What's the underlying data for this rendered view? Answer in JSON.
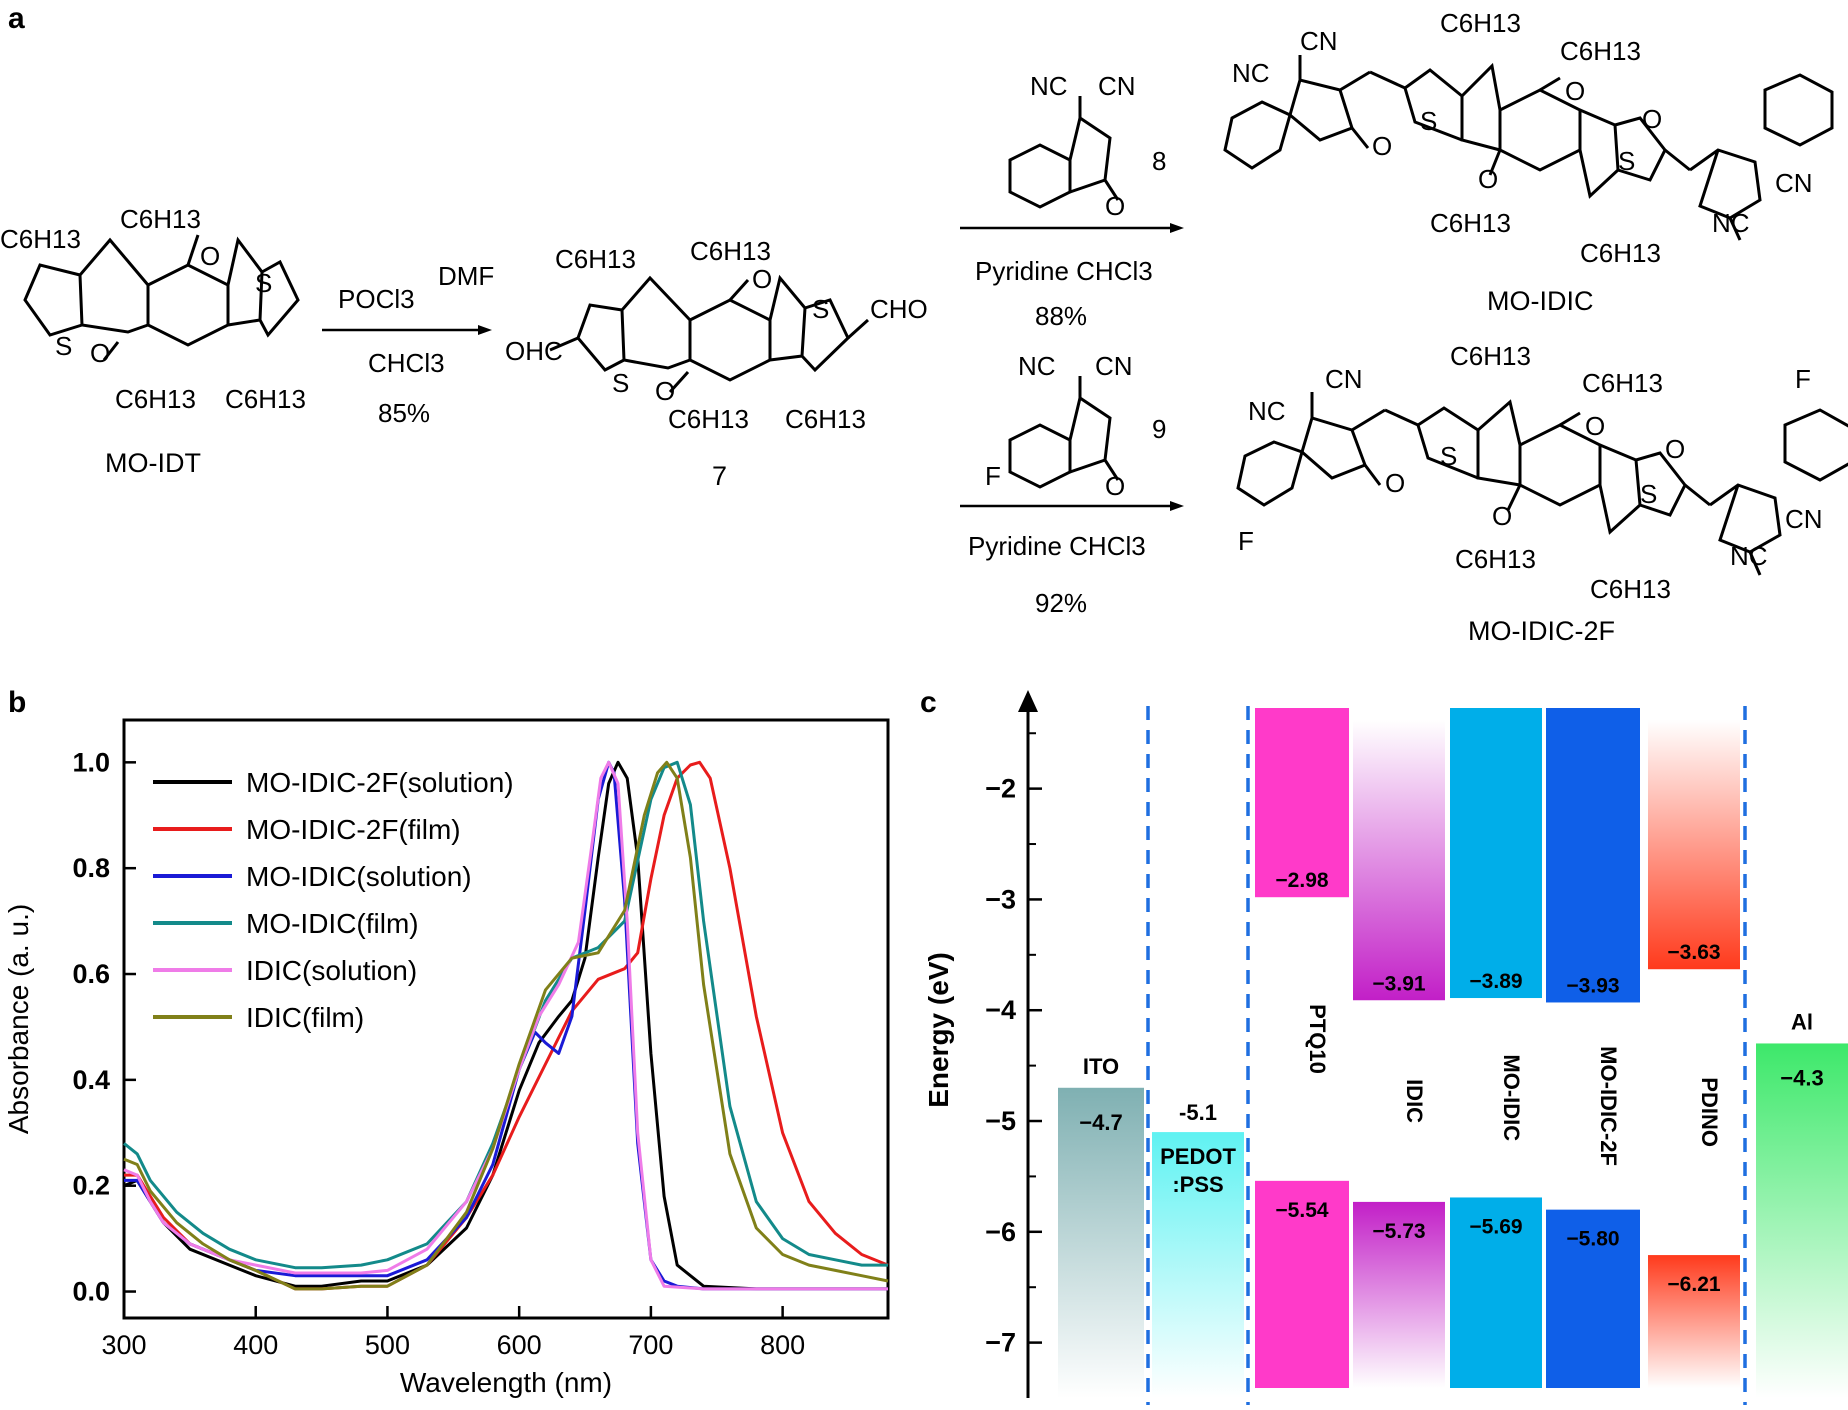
{
  "panel_a": {
    "label": "a",
    "start": {
      "name": "MO-IDT"
    },
    "step1": {
      "reagent_top_left": "POCl3",
      "reagent_top_right": "DMF",
      "solvent": "CHCl3",
      "yield": "85%"
    },
    "intermediate": {
      "number": "7"
    },
    "step2": {
      "reagent_number": "8",
      "conditions": "Pyridine CHCl3",
      "yield": "88%",
      "product": "MO-IDIC"
    },
    "step3": {
      "reagent_number": "9",
      "conditions": "Pyridine  CHCl3",
      "yield": "92%",
      "product": "MO-IDIC-2F"
    },
    "atom_labels": {
      "c6h13": "C6H13",
      "nc": "NC",
      "cn": "CN",
      "ohc": "OHC",
      "cho": "CHO",
      "s": "S",
      "o": "O",
      "f": "F"
    }
  },
  "panel_b": {
    "label": "b",
    "chart_data": {
      "type": "line",
      "xlabel": "Wavelength (nm)",
      "ylabel": "Absorbance (a. u.)",
      "xlim": [
        300,
        880
      ],
      "ylim": [
        -0.05,
        1.08
      ],
      "xticks": [
        "300",
        "400",
        "500",
        "600",
        "700",
        "800"
      ],
      "yticks": [
        "0.0",
        "0.2",
        "0.4",
        "0.6",
        "0.8",
        "1.0"
      ],
      "legend_position": "top-left",
      "series": [
        {
          "name": "MO-IDIC-2F(solution)",
          "color": "#000000",
          "x": [
            300,
            310,
            320,
            330,
            350,
            380,
            400,
            430,
            450,
            480,
            500,
            530,
            560,
            580,
            600,
            615,
            630,
            640,
            650,
            660,
            668,
            675,
            682,
            690,
            700,
            710,
            720,
            740,
            780,
            880
          ],
          "y": [
            0.2,
            0.21,
            0.17,
            0.13,
            0.08,
            0.05,
            0.03,
            0.01,
            0.01,
            0.02,
            0.02,
            0.05,
            0.12,
            0.22,
            0.38,
            0.47,
            0.52,
            0.55,
            0.63,
            0.82,
            0.96,
            1.0,
            0.97,
            0.82,
            0.45,
            0.18,
            0.05,
            0.01,
            0.005,
            0.005
          ]
        },
        {
          "name": "MO-IDIC-2F(film)",
          "color": "#e81c1c",
          "x": [
            300,
            310,
            320,
            330,
            350,
            380,
            400,
            430,
            450,
            480,
            500,
            530,
            560,
            580,
            600,
            620,
            640,
            660,
            680,
            690,
            700,
            710,
            720,
            730,
            737,
            745,
            760,
            780,
            800,
            820,
            840,
            860,
            880
          ],
          "y": [
            0.22,
            0.22,
            0.18,
            0.14,
            0.09,
            0.06,
            0.04,
            0.005,
            0.005,
            0.01,
            0.01,
            0.05,
            0.14,
            0.22,
            0.33,
            0.43,
            0.53,
            0.59,
            0.61,
            0.64,
            0.78,
            0.9,
            0.97,
            0.995,
            1.0,
            0.97,
            0.8,
            0.52,
            0.3,
            0.17,
            0.11,
            0.07,
            0.05
          ]
        },
        {
          "name": "MO-IDIC(solution)",
          "color": "#1a1ad6",
          "x": [
            300,
            310,
            320,
            330,
            350,
            380,
            400,
            430,
            450,
            480,
            500,
            530,
            560,
            580,
            600,
            612,
            620,
            630,
            640,
            650,
            660,
            668,
            672,
            680,
            690,
            700,
            710,
            720,
            740,
            780,
            880
          ],
          "y": [
            0.21,
            0.21,
            0.17,
            0.13,
            0.09,
            0.06,
            0.04,
            0.03,
            0.03,
            0.03,
            0.03,
            0.06,
            0.14,
            0.24,
            0.42,
            0.49,
            0.47,
            0.45,
            0.52,
            0.72,
            0.93,
            1.0,
            0.98,
            0.74,
            0.28,
            0.06,
            0.02,
            0.01,
            0.005,
            0.005,
            0.005
          ]
        },
        {
          "name": "MO-IDIC(film)",
          "color": "#138a8a",
          "x": [
            300,
            310,
            320,
            340,
            360,
            380,
            400,
            430,
            450,
            480,
            500,
            530,
            560,
            580,
            600,
            620,
            640,
            660,
            680,
            700,
            710,
            720,
            730,
            740,
            760,
            780,
            800,
            820,
            840,
            860,
            880
          ],
          "y": [
            0.28,
            0.26,
            0.21,
            0.15,
            0.11,
            0.08,
            0.06,
            0.045,
            0.045,
            0.05,
            0.06,
            0.09,
            0.17,
            0.28,
            0.42,
            0.55,
            0.63,
            0.65,
            0.7,
            0.93,
            0.99,
            1.0,
            0.92,
            0.7,
            0.35,
            0.17,
            0.1,
            0.07,
            0.06,
            0.05,
            0.05
          ]
        },
        {
          "name": "IDIC(solution)",
          "color": "#ef7ce8",
          "x": [
            300,
            310,
            320,
            330,
            350,
            380,
            400,
            430,
            450,
            480,
            500,
            530,
            560,
            580,
            600,
            615,
            630,
            645,
            655,
            662,
            668,
            675,
            682,
            690,
            700,
            710,
            740,
            880
          ],
          "y": [
            0.23,
            0.22,
            0.17,
            0.13,
            0.09,
            0.06,
            0.05,
            0.035,
            0.035,
            0.035,
            0.04,
            0.08,
            0.17,
            0.27,
            0.42,
            0.52,
            0.58,
            0.66,
            0.84,
            0.97,
            1.0,
            0.96,
            0.7,
            0.3,
            0.06,
            0.01,
            0.005,
            0.005
          ]
        },
        {
          "name": "IDIC(film)",
          "color": "#808019",
          "x": [
            300,
            310,
            320,
            340,
            360,
            380,
            400,
            430,
            450,
            480,
            500,
            530,
            560,
            580,
            600,
            620,
            640,
            660,
            680,
            695,
            705,
            712,
            720,
            730,
            740,
            760,
            780,
            800,
            820,
            840,
            860,
            880
          ],
          "y": [
            0.25,
            0.24,
            0.19,
            0.13,
            0.09,
            0.06,
            0.04,
            0.005,
            0.005,
            0.01,
            0.01,
            0.05,
            0.15,
            0.27,
            0.43,
            0.57,
            0.63,
            0.64,
            0.72,
            0.9,
            0.98,
            1.0,
            0.97,
            0.82,
            0.58,
            0.26,
            0.12,
            0.07,
            0.05,
            0.04,
            0.03,
            0.02
          ]
        }
      ]
    }
  },
  "panel_c": {
    "label": "c",
    "chart_data": {
      "type": "bar",
      "ylabel": "Energy (eV)",
      "ylim": [
        -7.5,
        -1.2
      ],
      "yticks": [
        "-2",
        "-3",
        "-4",
        "-5",
        "-6",
        "-7"
      ],
      "materials": [
        {
          "name": "ITO",
          "top": -4.7,
          "bottom": -7.5,
          "top_label": "−4.7",
          "bottom_label": "",
          "color": "#7fb0b2"
        },
        {
          "name": "PEDOT\n:PSS",
          "name_line1": "PEDOT",
          "name_line2": ":PSS",
          "top": -5.1,
          "bottom": -7.5,
          "top_label": "-5.1",
          "bottom_label": "",
          "color": "#5ff2f2"
        },
        {
          "name": "PTQ10",
          "top": -1.2,
          "bottom": -7.5,
          "lumo": -2.98,
          "homo": -5.54,
          "lumo_label": "−2.98",
          "homo_label": "−5.54",
          "color": "#ff3ac9"
        },
        {
          "name": "IDIC",
          "top": -1.2,
          "bottom": -7.5,
          "lumo": -3.91,
          "homo": -5.73,
          "lumo_label": "−3.91",
          "homo_label": "−5.73",
          "color": "#c21fc7"
        },
        {
          "name": "MO-IDIC",
          "top": -1.2,
          "bottom": -7.5,
          "lumo": -3.89,
          "homo": -5.69,
          "lumo_label": "−3.89",
          "homo_label": "−5.69",
          "color": "#00aee9"
        },
        {
          "name": "MO-IDIC-2F",
          "top": -1.2,
          "bottom": -7.5,
          "lumo": -3.93,
          "homo": -5.8,
          "lumo_label": "−3.93",
          "homo_label": "−5.80",
          "color": "#0f5fe8"
        },
        {
          "name": "PDINO",
          "top": -1.2,
          "bottom": -7.5,
          "lumo": -3.63,
          "homo": -6.21,
          "lumo_label": "−3.63",
          "homo_label": "−6.21",
          "color": "#ff3a1c"
        },
        {
          "name": "Al",
          "top": -4.3,
          "bottom": -7.5,
          "top_label": "−4.3",
          "bottom_label": "",
          "color": "#3de86a"
        }
      ]
    }
  }
}
